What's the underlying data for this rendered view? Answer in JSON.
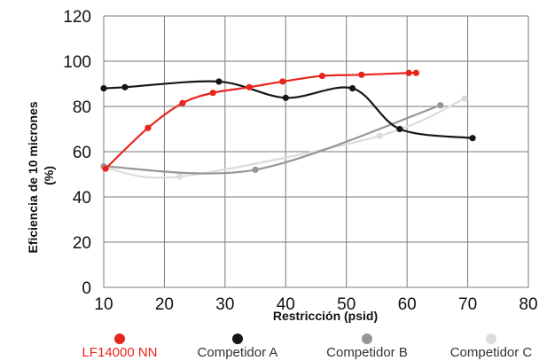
{
  "chart_data": {
    "type": "line",
    "xlabel": "Restricción (psid)",
    "ylabel_lines": [
      "Eficiencia de 10 micrones",
      "(%)"
    ],
    "xlim": [
      10,
      80
    ],
    "ylim": [
      0,
      120
    ],
    "x_ticks": [
      "10",
      "20",
      "30",
      "40",
      "50",
      "60",
      "70",
      "80"
    ],
    "y_ticks": [
      "0",
      "20",
      "40",
      "60",
      "80",
      "100",
      "120"
    ],
    "grid": true,
    "legend_position": "bottom",
    "series": [
      {
        "name": "LF14000 NN",
        "color": "#e8251c",
        "label_color": "#e8251c",
        "x": [
          10.3,
          17.3,
          23,
          28,
          34,
          39.5,
          46,
          52.5,
          60.3,
          61.5
        ],
        "y": [
          52.5,
          70.5,
          81.5,
          86,
          88.5,
          91,
          93.5,
          94,
          94.8,
          94.8
        ]
      },
      {
        "name": "Competidor A",
        "color": "#161616",
        "label_color": "#333333",
        "x": [
          10,
          13.5,
          29,
          40,
          51,
          58.8,
          70.8
        ],
        "y": [
          88,
          88.5,
          91,
          83.8,
          88,
          70,
          66
        ]
      },
      {
        "name": "Competidor B",
        "color": "#969696",
        "label_color": "#333333",
        "x": [
          10,
          35,
          65.5
        ],
        "y": [
          53.5,
          52,
          80.5
        ]
      },
      {
        "name": "Competidor C",
        "color": "#dcdcdc",
        "label_color": "#333333",
        "x": [
          10.2,
          22.5,
          55.5,
          69.5
        ],
        "y": [
          53,
          49,
          67,
          83.5
        ]
      }
    ]
  }
}
